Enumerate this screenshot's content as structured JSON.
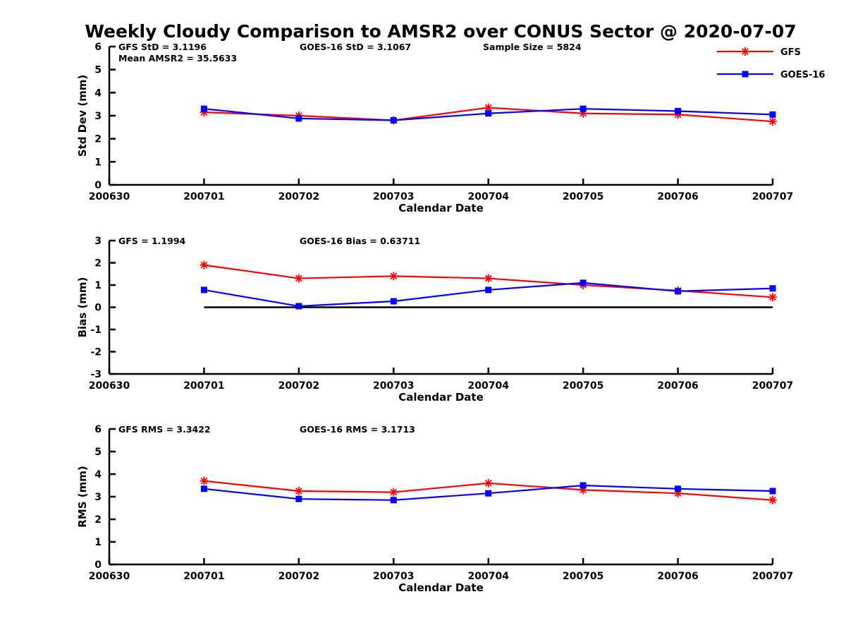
{
  "title": "Weekly Cloudy Comparison to AMSR2 over CONUS Sector @ 2020-07-07",
  "colors": {
    "gfs": "#ff0000",
    "goes16": "#0000ff",
    "axis": "#000000"
  },
  "chart_data": [
    {
      "type": "line",
      "title": "",
      "ylabel": "Std Dev (mm)",
      "xlabel": "Calendar Date",
      "axis_ticks_x": [
        "200630",
        "200701",
        "200702",
        "200703",
        "200704",
        "200705",
        "200706",
        "200707"
      ],
      "categories": [
        "200701",
        "200702",
        "200703",
        "200704",
        "200705",
        "200706",
        "200707"
      ],
      "ylim": [
        0,
        6
      ],
      "ytick_step": 1,
      "grid": false,
      "legend_position": "top-right",
      "series": [
        {
          "name": "GFS",
          "color": "#ff0000",
          "marker": "asterisk",
          "values": [
            3.15,
            3.0,
            2.8,
            3.35,
            3.1,
            3.05,
            2.75
          ]
        },
        {
          "name": "GOES-16",
          "color": "#0000ff",
          "marker": "square",
          "values": [
            3.3,
            2.88,
            2.8,
            3.1,
            3.3,
            3.2,
            3.05
          ]
        }
      ],
      "annotations": [
        {
          "text": "GFS StD = 3.1196",
          "col": 0,
          "row": 0
        },
        {
          "text": "Mean AMSR2 = 35.5633",
          "col": 0,
          "row": 1
        },
        {
          "text": "GOES-16 StD = 3.1067",
          "col": 1,
          "row": 0
        },
        {
          "text": "Sample Size = 5824",
          "col": 2,
          "row": 0
        }
      ],
      "legend": true
    },
    {
      "type": "line",
      "title": "",
      "ylabel": "Bias (mm)",
      "xlabel": "Calendar Date",
      "axis_ticks_x": [
        "200630",
        "200701",
        "200702",
        "200703",
        "200704",
        "200705",
        "200706",
        "200707"
      ],
      "categories": [
        "200701",
        "200702",
        "200703",
        "200704",
        "200705",
        "200706",
        "200707"
      ],
      "ylim": [
        -3,
        3
      ],
      "ytick_step": 1,
      "grid": false,
      "zero_line": true,
      "series": [
        {
          "name": "GFS",
          "color": "#ff0000",
          "marker": "asterisk",
          "values": [
            1.9,
            1.3,
            1.4,
            1.3,
            1.0,
            0.75,
            0.45
          ]
        },
        {
          "name": "GOES-16",
          "color": "#0000ff",
          "marker": "square",
          "values": [
            0.78,
            0.05,
            0.27,
            0.78,
            1.1,
            0.72,
            0.85
          ]
        }
      ],
      "annotations": [
        {
          "text": "GFS = 1.1994",
          "col": 0,
          "row": 0
        },
        {
          "text": "GOES-16 Bias  = 0.63711",
          "col": 1,
          "row": 0
        }
      ],
      "legend": false
    },
    {
      "type": "line",
      "title": "",
      "ylabel": "RMS (mm)",
      "xlabel": "Calendar Date",
      "axis_ticks_x": [
        "200630",
        "200701",
        "200702",
        "200703",
        "200704",
        "200705",
        "200706",
        "200707"
      ],
      "categories": [
        "200701",
        "200702",
        "200703",
        "200704",
        "200705",
        "200706",
        "200707"
      ],
      "ylim": [
        0,
        6
      ],
      "ytick_step": 1,
      "grid": false,
      "series": [
        {
          "name": "GFS",
          "color": "#ff0000",
          "marker": "asterisk",
          "values": [
            3.7,
            3.25,
            3.2,
            3.6,
            3.3,
            3.15,
            2.85
          ]
        },
        {
          "name": "GOES-16",
          "color": "#0000ff",
          "marker": "square",
          "values": [
            3.35,
            2.9,
            2.85,
            3.15,
            3.5,
            3.35,
            3.25
          ]
        }
      ],
      "annotations": [
        {
          "text": "GFS RMS = 3.3422",
          "col": 0,
          "row": 0
        },
        {
          "text": "GOES-16 RMS = 3.1713",
          "col": 1,
          "row": 0
        }
      ],
      "legend": false
    }
  ]
}
